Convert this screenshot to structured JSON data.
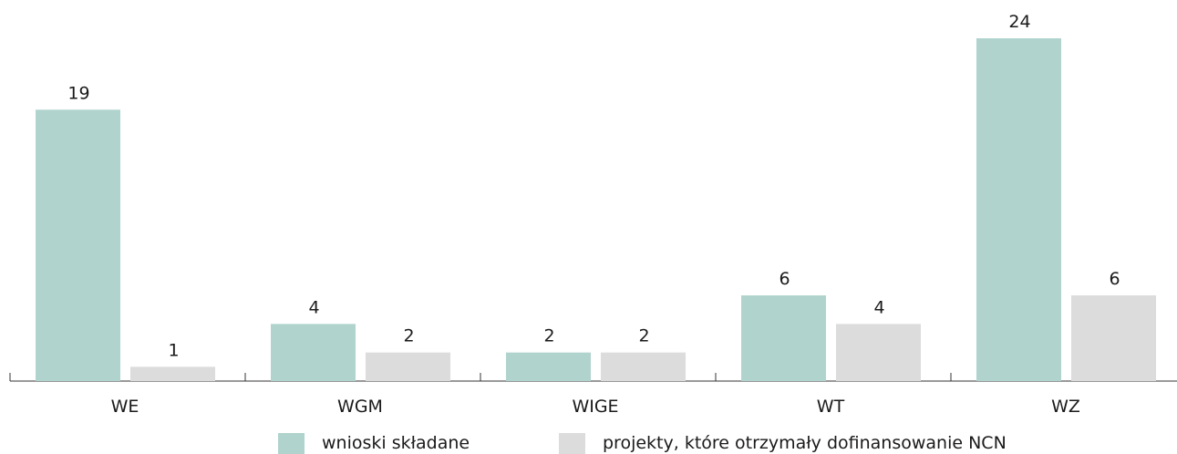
{
  "chart_data": {
    "type": "bar",
    "title": "",
    "xlabel": "",
    "ylabel": "",
    "ylim": [
      0,
      24
    ],
    "grid": false,
    "legend_position": "bottom",
    "categories": [
      "WE",
      "WGM",
      "WIGE",
      "WT",
      "WZ"
    ],
    "series": [
      {
        "name": "wnioski składane",
        "color": "#b0d4cd",
        "values": [
          19,
          4,
          2,
          6,
          24
        ]
      },
      {
        "name": "projekty, które otrzymały dofinansowanie NCN",
        "color": "#dcdcdc",
        "values": [
          1,
          2,
          2,
          4,
          6
        ]
      }
    ]
  }
}
